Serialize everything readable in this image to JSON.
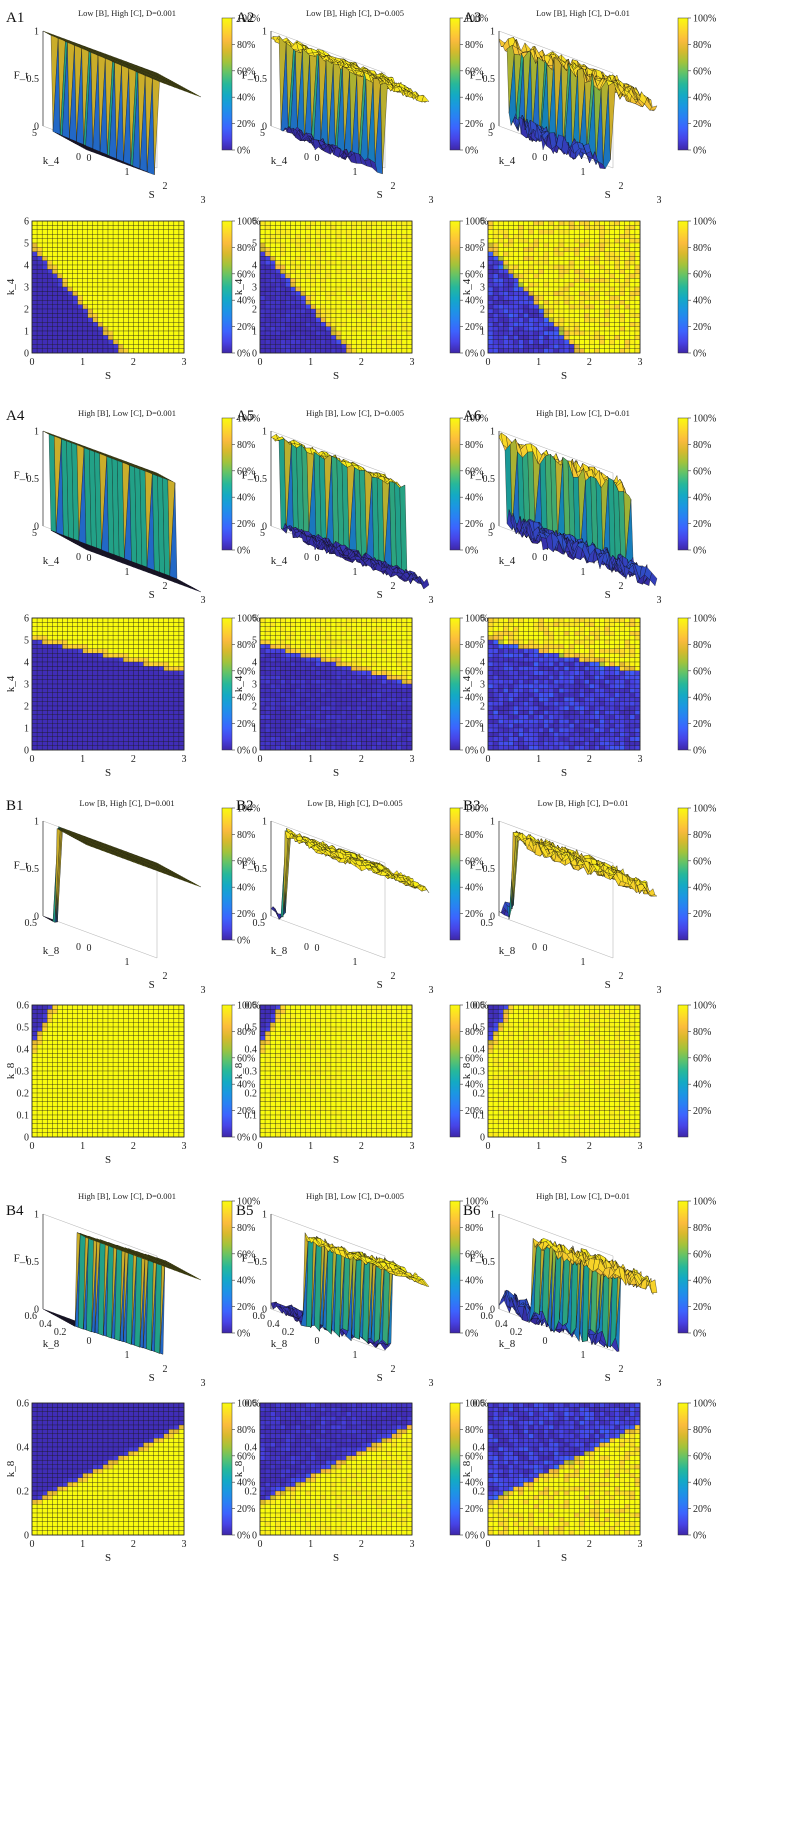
{
  "figure": {
    "colormap": [
      "#3e26a8",
      "#4743e6",
      "#3c63fe",
      "#2a80f4",
      "#1b97e1",
      "#13aac4",
      "#27b89a",
      "#60c36a",
      "#a2c33b",
      "#d7b92d",
      "#fbbb3d",
      "#fdd92a",
      "#f9fb0e"
    ],
    "grid_color": "#1a1a1a",
    "colorbar_ticks": [
      "100%",
      "80%",
      "60%",
      "40%",
      "20%",
      "0%"
    ],
    "colorbar_ticks_alt": [
      "100%",
      "80%",
      "60%",
      "40%",
      "20%"
    ]
  },
  "chart_data": [
    {
      "id": "A1",
      "type": "surface3d",
      "title": "Low [B], High [C], D=0.001",
      "zlabel": "F_t",
      "xlabel": "S",
      "ylabel": "k_4",
      "x_range": [
        0,
        3
      ],
      "y_range": [
        0,
        6
      ],
      "z_ticks": [
        "1",
        "0.5",
        "0"
      ],
      "x_ticks": [
        "0",
        "1",
        "2",
        "3"
      ],
      "y_ticks": [
        "0",
        "5"
      ],
      "noise": 0.0,
      "boundary": "k4=4.8-2.7S",
      "colorbar_ticks": [
        "100%",
        "80%",
        "60%",
        "40%",
        "20%",
        "0%"
      ]
    },
    {
      "id": "A2",
      "type": "surface3d",
      "title": "Low [B], High [C], D=0.005",
      "zlabel": "F_t",
      "xlabel": "S",
      "ylabel": "k_4",
      "x_range": [
        0,
        3
      ],
      "y_range": [
        0,
        6
      ],
      "z_ticks": [
        "1",
        "0.5",
        "0"
      ],
      "x_ticks": [
        "0",
        "1",
        "2",
        "3"
      ],
      "y_ticks": [
        "0",
        "5"
      ],
      "noise": 0.08,
      "boundary": "k4=4.8-2.7S",
      "colorbar_ticks": [
        "100%",
        "80%",
        "60%",
        "40%",
        "20%",
        "0%"
      ]
    },
    {
      "id": "A3",
      "type": "surface3d",
      "title": "Low [B], High [C], D=0.01",
      "zlabel": "F_t",
      "xlabel": "S",
      "ylabel": "k_4",
      "x_range": [
        0,
        3
      ],
      "y_range": [
        0,
        6
      ],
      "z_ticks": [
        "1",
        "0.5",
        "0"
      ],
      "x_ticks": [
        "0",
        "1",
        "2",
        "3"
      ],
      "y_ticks": [
        "0",
        "5"
      ],
      "noise": 0.15,
      "boundary": "k4=4.8-2.7S",
      "colorbar_ticks": [
        "100%",
        "80%",
        "60%",
        "40%",
        "20%",
        "0%"
      ]
    },
    {
      "id": "A1h",
      "type": "heatmap",
      "title": "",
      "xlabel": "S",
      "ylabel": "k_4",
      "x_range": [
        0,
        3
      ],
      "y_range": [
        0,
        6
      ],
      "x_ticks": [
        "0",
        "1",
        "2",
        "3"
      ],
      "y_ticks": [
        "0",
        "1",
        "2",
        "3",
        "4",
        "5",
        "6"
      ],
      "noise": 0.0,
      "boundary": "k4=4.8-2.7S",
      "colorbar_ticks": [
        "100%",
        "80%",
        "60%",
        "40%",
        "20%",
        "0%"
      ]
    },
    {
      "id": "A2h",
      "type": "heatmap",
      "title": "",
      "xlabel": "S",
      "ylabel": "k_4",
      "x_range": [
        0,
        3
      ],
      "y_range": [
        0,
        6
      ],
      "x_ticks": [
        "0",
        "1",
        "2",
        "3"
      ],
      "y_ticks": [
        "0",
        "1",
        "2",
        "3",
        "4",
        "5",
        "6"
      ],
      "noise": 0.05,
      "boundary": "k4=4.8-2.7S",
      "colorbar_ticks": [
        "100%",
        "80%",
        "60%",
        "40%",
        "20%",
        "0%"
      ]
    },
    {
      "id": "A3h",
      "type": "heatmap",
      "title": "",
      "xlabel": "S",
      "ylabel": "k_4",
      "x_range": [
        0,
        3
      ],
      "y_range": [
        0,
        6
      ],
      "x_ticks": [
        "0",
        "1",
        "2",
        "3"
      ],
      "y_ticks": [
        "0",
        "1",
        "2",
        "3",
        "4",
        "5",
        "6"
      ],
      "noise": 0.12,
      "boundary": "k4=4.8-2.7S",
      "colorbar_ticks": [
        "100%",
        "80%",
        "60%",
        "40%",
        "20%",
        "0%"
      ]
    },
    {
      "id": "A4",
      "type": "surface3d",
      "title": "High [B], Low [C], D=0.001",
      "zlabel": "F_t",
      "xlabel": "S",
      "ylabel": "k_4",
      "x_range": [
        0,
        3
      ],
      "y_range": [
        0,
        6
      ],
      "z_ticks": [
        "1",
        "0.5",
        "0"
      ],
      "x_ticks": [
        "0",
        "1",
        "2",
        "3"
      ],
      "y_ticks": [
        "0",
        "5"
      ],
      "noise": 0.0,
      "boundary": "k4=5.0-0.5S",
      "colorbar_ticks": [
        "100%",
        "80%",
        "60%",
        "40%",
        "20%",
        "0%"
      ]
    },
    {
      "id": "A5",
      "type": "surface3d",
      "title": "High [B], Low [C], D=0.005",
      "zlabel": "F_t",
      "xlabel": "S",
      "ylabel": "k_4",
      "x_range": [
        0,
        3
      ],
      "y_range": [
        0,
        6
      ],
      "z_ticks": [
        "1",
        "0.5",
        "0"
      ],
      "x_ticks": [
        "0",
        "1",
        "2",
        "3"
      ],
      "y_ticks": [
        "0",
        "5"
      ],
      "noise": 0.08,
      "boundary": "k4=4.8-0.6S",
      "colorbar_ticks": [
        "100%",
        "80%",
        "60%",
        "40%",
        "20%",
        "0%"
      ]
    },
    {
      "id": "A6",
      "type": "surface3d",
      "title": "High [B], Low [C], D=0.01",
      "zlabel": "F_t",
      "xlabel": "S",
      "ylabel": "k_4",
      "x_range": [
        0,
        3
      ],
      "y_range": [
        0,
        6
      ],
      "z_ticks": [
        "1",
        "0.5",
        "0"
      ],
      "x_ticks": [
        "0",
        "1",
        "2",
        "3"
      ],
      "y_ticks": [
        "0",
        "5"
      ],
      "noise": 0.15,
      "boundary": "k4=5.0-0.5S",
      "colorbar_ticks": [
        "100%",
        "80%",
        "60%",
        "40%",
        "20%",
        "0%"
      ]
    },
    {
      "id": "A4h",
      "type": "heatmap",
      "title": "",
      "xlabel": "S",
      "ylabel": "k_4",
      "x_range": [
        0,
        3
      ],
      "y_range": [
        0,
        6
      ],
      "x_ticks": [
        "0",
        "1",
        "2",
        "3"
      ],
      "y_ticks": [
        "0",
        "1",
        "2",
        "3",
        "4",
        "5",
        "6"
      ],
      "noise": 0.0,
      "boundary": "k4=5.0-0.5S",
      "colorbar_ticks": [
        "100%",
        "80%",
        "60%",
        "40%",
        "20%",
        "0%"
      ]
    },
    {
      "id": "A5h",
      "type": "heatmap",
      "title": "",
      "xlabel": "S",
      "ylabel": "k_4",
      "x_range": [
        0,
        3
      ],
      "y_range": [
        0,
        6
      ],
      "x_ticks": [
        "0",
        "1",
        "2",
        "3"
      ],
      "y_ticks": [
        "0",
        "1",
        "2",
        "3",
        "4",
        "5",
        "6"
      ],
      "noise": 0.05,
      "boundary": "k4=4.8-0.6S",
      "colorbar_ticks": [
        "100%",
        "80%",
        "60%",
        "40%",
        "20%",
        "0%"
      ]
    },
    {
      "id": "A6h",
      "type": "heatmap",
      "title": "",
      "xlabel": "S",
      "ylabel": "k_4",
      "x_range": [
        0,
        3
      ],
      "y_range": [
        0,
        6
      ],
      "x_ticks": [
        "0",
        "1",
        "2",
        "3"
      ],
      "y_ticks": [
        "0",
        "1",
        "2",
        "3",
        "4",
        "5",
        "6"
      ],
      "noise": 0.12,
      "boundary": "k4=5.0-0.5S",
      "colorbar_ticks": [
        "100%",
        "80%",
        "60%",
        "40%",
        "20%",
        "0%"
      ]
    },
    {
      "id": "B1",
      "type": "surface3d",
      "title": "Low [B, High [C], D=0.001",
      "zlabel": "F_t",
      "xlabel": "S",
      "ylabel": "k_8",
      "x_range": [
        0,
        3
      ],
      "y_range": [
        0,
        0.6
      ],
      "z_ticks": [
        "1",
        "0.5",
        "0"
      ],
      "x_ticks": [
        "0",
        "1",
        "2",
        "3"
      ],
      "y_ticks": [
        "0",
        "0.5"
      ],
      "noise": 0.0,
      "boundary": "corner",
      "colorbar_ticks": [
        "100%",
        "80%",
        "60%",
        "40%",
        "20%",
        "0%"
      ]
    },
    {
      "id": "B2",
      "type": "surface3d",
      "title": "Low [B, High [C], D=0.005",
      "zlabel": "F_t",
      "xlabel": "S",
      "ylabel": "k_8",
      "x_range": [
        0,
        3
      ],
      "y_range": [
        0,
        0.6
      ],
      "z_ticks": [
        "1",
        "0.5",
        "0"
      ],
      "x_ticks": [
        "0",
        "1",
        "2",
        "3"
      ],
      "y_ticks": [
        "0",
        "0.5"
      ],
      "noise": 0.08,
      "boundary": "corner",
      "colorbar_ticks": [
        "100%",
        "80%",
        "60%",
        "40%",
        "20%"
      ]
    },
    {
      "id": "B3",
      "type": "surface3d",
      "title": "Low [B, High [C], D=0.01",
      "zlabel": "F_t",
      "xlabel": "S",
      "ylabel": "k_8",
      "x_range": [
        0,
        3
      ],
      "y_range": [
        0,
        0.6
      ],
      "z_ticks": [
        "1",
        "0.5",
        "0"
      ],
      "x_ticks": [
        "0",
        "1",
        "2",
        "3"
      ],
      "y_ticks": [
        "0",
        "0.5"
      ],
      "noise": 0.12,
      "boundary": "corner",
      "colorbar_ticks": [
        "100%",
        "80%",
        "60%",
        "40%",
        "20%"
      ]
    },
    {
      "id": "B1h",
      "type": "heatmap",
      "title": "",
      "xlabel": "S",
      "ylabel": "k_8",
      "x_range": [
        0,
        3
      ],
      "y_range": [
        0,
        0.6
      ],
      "x_ticks": [
        "0",
        "1",
        "2",
        "3"
      ],
      "y_ticks": [
        "0",
        "0.1",
        "0.2",
        "0.3",
        "0.4",
        "0.5",
        "0.6"
      ],
      "noise": 0.0,
      "boundary": "corner",
      "colorbar_ticks": [
        "100%",
        "80%",
        "60%",
        "40%",
        "20%",
        "0%"
      ]
    },
    {
      "id": "B2h",
      "type": "heatmap",
      "title": "",
      "xlabel": "S",
      "ylabel": "k_8",
      "x_range": [
        0,
        3
      ],
      "y_range": [
        0,
        0.6
      ],
      "x_ticks": [
        "0",
        "1",
        "2",
        "3"
      ],
      "y_ticks": [
        "0",
        "0.1",
        "0.2",
        "0.3",
        "0.4",
        "0.5",
        "0.6"
      ],
      "noise": 0.03,
      "boundary": "corner",
      "colorbar_ticks": [
        "100%",
        "80%",
        "60%",
        "40%",
        "20%"
      ]
    },
    {
      "id": "B3h",
      "type": "heatmap",
      "title": "",
      "xlabel": "S",
      "ylabel": "k_8",
      "x_range": [
        0,
        3
      ],
      "y_range": [
        0,
        0.6
      ],
      "x_ticks": [
        "0",
        "1",
        "2",
        "3"
      ],
      "y_ticks": [
        "0",
        "0.1",
        "0.2",
        "0.3",
        "0.4",
        "0.5",
        "0.6"
      ],
      "noise": 0.05,
      "boundary": "corner",
      "colorbar_ticks": [
        "100%",
        "80%",
        "60%",
        "40%",
        "20%"
      ]
    },
    {
      "id": "B4",
      "type": "surface3d",
      "title": "High [B], Low [C], D=0.001",
      "zlabel": "F_t",
      "xlabel": "S",
      "ylabel": "k_8",
      "x_range": [
        0,
        3
      ],
      "y_range": [
        0,
        0.6
      ],
      "z_ticks": [
        "1",
        "0.5",
        "0"
      ],
      "x_ticks": [
        "0",
        "1",
        "2",
        "3"
      ],
      "y_ticks": [
        "0.2",
        "0.4",
        "0.6"
      ],
      "noise": 0.0,
      "boundary": "k8=0.15+0.117S",
      "colorbar_ticks": [
        "100%",
        "80%",
        "60%",
        "40%",
        "20%",
        "0%"
      ]
    },
    {
      "id": "B5",
      "type": "surface3d",
      "title": "High [B], Low [C], D=0.005",
      "zlabel": "F_t",
      "xlabel": "S",
      "ylabel": "k_8",
      "x_range": [
        0,
        3
      ],
      "y_range": [
        0,
        0.6
      ],
      "z_ticks": [
        "1",
        "0.5",
        "0"
      ],
      "x_ticks": [
        "0",
        "1",
        "2",
        "3"
      ],
      "y_ticks": [
        "0.2",
        "0.4",
        "0.6"
      ],
      "noise": 0.08,
      "boundary": "k8=0.15+0.117S",
      "colorbar_ticks": [
        "100%",
        "80%",
        "60%",
        "40%",
        "20%",
        "0%"
      ]
    },
    {
      "id": "B6",
      "type": "surface3d",
      "title": "High [B], Low [C], D=0.01",
      "zlabel": "F_t",
      "xlabel": "S",
      "ylabel": "k_8",
      "x_range": [
        0,
        3
      ],
      "y_range": [
        0,
        0.6
      ],
      "z_ticks": [
        "1",
        "0.5",
        "0"
      ],
      "x_ticks": [
        "0",
        "1",
        "2",
        "3"
      ],
      "y_ticks": [
        "0.2",
        "0.4",
        "0.6"
      ],
      "noise": 0.15,
      "boundary": "k8=0.15+0.117S",
      "colorbar_ticks": [
        "100%",
        "80%",
        "60%",
        "40%",
        "20%",
        "0%"
      ]
    },
    {
      "id": "B4h",
      "type": "heatmap",
      "title": "",
      "xlabel": "S",
      "ylabel": "k_8",
      "x_range": [
        0,
        3
      ],
      "y_range": [
        0,
        0.6
      ],
      "x_ticks": [
        "0",
        "1",
        "2",
        "3"
      ],
      "y_ticks": [
        "0",
        "0.2",
        "0.4",
        "0.6"
      ],
      "noise": 0.0,
      "boundary": "k8=0.15+0.117S",
      "colorbar_ticks": [
        "100%",
        "80%",
        "60%",
        "40%",
        "20%",
        "0%"
      ]
    },
    {
      "id": "B5h",
      "type": "heatmap",
      "title": "",
      "xlabel": "S",
      "ylabel": "k_8",
      "x_range": [
        0,
        3
      ],
      "y_range": [
        0,
        0.6
      ],
      "x_ticks": [
        "0",
        "1",
        "2",
        "3"
      ],
      "y_ticks": [
        "0",
        "0.2",
        "0.4",
        "0.6"
      ],
      "noise": 0.06,
      "boundary": "k8=0.15+0.117S",
      "colorbar_ticks": [
        "100%",
        "80%",
        "60%",
        "40%",
        "20%",
        "0%"
      ]
    },
    {
      "id": "B6h",
      "type": "heatmap",
      "title": "",
      "xlabel": "S",
      "ylabel": "k_8",
      "x_range": [
        0,
        3
      ],
      "y_range": [
        0,
        0.6
      ],
      "x_ticks": [
        "0",
        "1",
        "2",
        "3"
      ],
      "y_ticks": [
        "0",
        "0.2",
        "0.4",
        "0.6"
      ],
      "noise": 0.12,
      "boundary": "k8=0.15+0.117S",
      "colorbar_ticks": [
        "100%",
        "80%",
        "60%",
        "40%",
        "20%",
        "0%"
      ]
    }
  ],
  "panel_labels": [
    "A1",
    "A2",
    "A3",
    "A4",
    "A5",
    "A6",
    "B1",
    "B2",
    "B3",
    "B4",
    "B5",
    "B6"
  ]
}
